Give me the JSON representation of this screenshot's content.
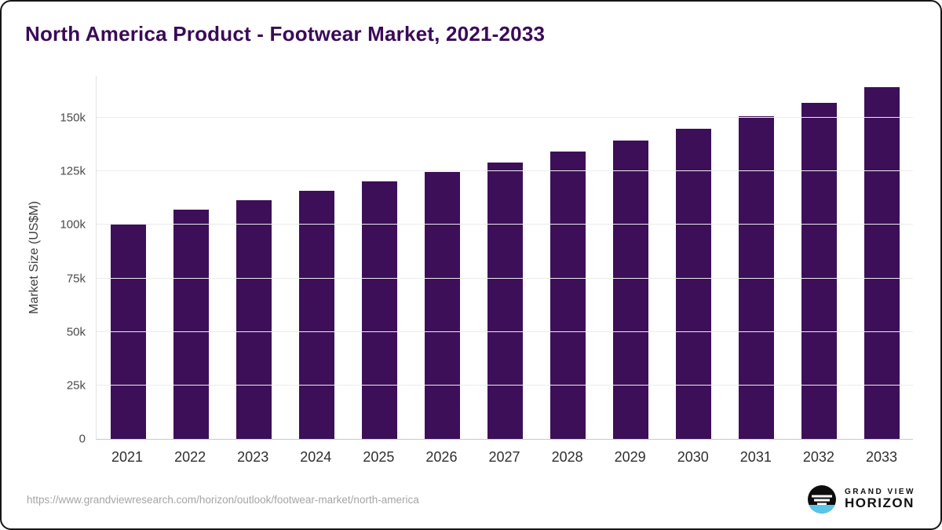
{
  "chart_data": {
    "type": "bar",
    "title": "North America Product - Footwear Market, 2021-2033",
    "xlabel": "",
    "ylabel": "Market Size (US$M)",
    "categories": [
      "2021",
      "2022",
      "2023",
      "2024",
      "2025",
      "2026",
      "2027",
      "2028",
      "2029",
      "2030",
      "2031",
      "2032",
      "2033"
    ],
    "values": [
      100.6,
      107.3,
      111.7,
      115.8,
      120.2,
      124.6,
      129.3,
      134.3,
      139.3,
      145.1,
      150.9,
      156.9,
      164.2
    ],
    "values_unit": "thousand US$M",
    "ylim": [
      0,
      169.5
    ],
    "yticks": [
      {
        "label": "0",
        "value": 0
      },
      {
        "label": "25k",
        "value": 25
      },
      {
        "label": "50k",
        "value": 50
      },
      {
        "label": "75k",
        "value": 75
      },
      {
        "label": "100k",
        "value": 100
      },
      {
        "label": "125k",
        "value": 125
      },
      {
        "label": "150k",
        "value": 150
      }
    ],
    "grid": true,
    "legend": "none",
    "bar_color": "#3d0f58",
    "title_color": "#3a0a57"
  },
  "footer": {
    "source_url": "https://www.grandviewresearch.com/horizon/outlook/footwear-market/north-america",
    "logo": {
      "top": "GRAND VIEW",
      "bottom": "HORIZON",
      "icon_colors": {
        "circle": "#0d0d0d",
        "water": "#59c6e9",
        "stripes": "#ffffff"
      }
    }
  }
}
